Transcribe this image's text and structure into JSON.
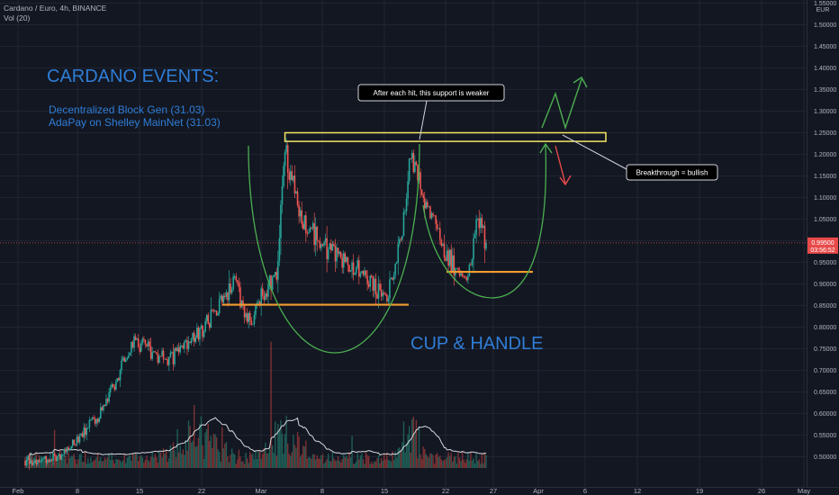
{
  "legend": {
    "symbol_line": "Cardano / Euro, 4h, BINANCE",
    "volume_line": "Vol (20)"
  },
  "colors": {
    "background": "#131722",
    "grid": "#1f2431",
    "up": "#26a69a",
    "down": "#ef5350",
    "annotation_blue": "#2f7dd6",
    "support_orange": "#f39b2e",
    "resistance_yellow": "#f5e663",
    "cup_green": "#4caf50",
    "price_tag": "#e84a4a",
    "volume_ma": "#d7d9dd"
  },
  "chart_data": {
    "type": "candlestick",
    "title": "Cardano / Euro, 4h, BINANCE",
    "currency": "EUR",
    "x_tick_labels": [
      "Feb",
      "8",
      "15",
      "22",
      "Mar",
      "8",
      "15",
      "22",
      "27",
      "Apr",
      "6",
      "12",
      "19",
      "26",
      "May"
    ],
    "y_tick_labels": [
      "1.55000",
      "1.50000",
      "1.45000",
      "1.40000",
      "1.35000",
      "1.30000",
      "1.25000",
      "1.20000",
      "1.15000",
      "1.10000",
      "1.05000",
      "1.00000",
      "0.95000",
      "0.90000",
      "0.85000",
      "0.80000",
      "0.75000",
      "0.70000",
      "0.65000",
      "0.60000",
      "0.55000",
      "0.50000"
    ],
    "ylim": [
      0.48,
      1.56
    ],
    "last_price": "0.99500",
    "countdown": "03:56:52",
    "price_anchors": [
      {
        "t": 0,
        "v": 0.49
      },
      {
        "t": 4,
        "v": 0.5
      },
      {
        "t": 9,
        "v": 0.6
      },
      {
        "t": 13,
        "v": 0.77
      },
      {
        "t": 17,
        "v": 0.72
      },
      {
        "t": 21,
        "v": 0.79
      },
      {
        "t": 25,
        "v": 0.9
      },
      {
        "t": 27,
        "v": 0.8
      },
      {
        "t": 28,
        "v": 0.87
      },
      {
        "t": 30,
        "v": 0.92
      },
      {
        "t": 31,
        "v": 1.21
      },
      {
        "t": 33,
        "v": 1.05
      },
      {
        "t": 36,
        "v": 0.98
      },
      {
        "t": 40,
        "v": 0.93
      },
      {
        "t": 43,
        "v": 0.86
      },
      {
        "t": 45,
        "v": 1.02
      },
      {
        "t": 46,
        "v": 1.21
      },
      {
        "t": 48,
        "v": 1.07
      },
      {
        "t": 50,
        "v": 0.98
      },
      {
        "t": 52,
        "v": 0.91
      },
      {
        "t": 53,
        "v": 0.94
      },
      {
        "t": 54,
        "v": 1.06
      },
      {
        "t": 55,
        "v": 0.995
      }
    ],
    "annotations": {
      "events_title": "CARDANO EVENTS:",
      "event_lines": [
        "Decentralized Block Gen (31.03)",
        "AdaPay on Shelley MainNet (31.03)"
      ],
      "pattern_label": "CUP & HANDLE",
      "callout_support": "After each hit, this support is weaker",
      "callout_breakout": "Breakthrough = bullish"
    },
    "resistance_zone": {
      "from_t": 31,
      "to_t": 70,
      "top": 1.25,
      "bottom": 1.23
    },
    "support_lines": [
      {
        "from_t": 29,
        "to_t": 46,
        "v": 0.852
      },
      {
        "from_t": 50,
        "to_t": 58,
        "v": 0.928
      }
    ],
    "grid": true
  }
}
